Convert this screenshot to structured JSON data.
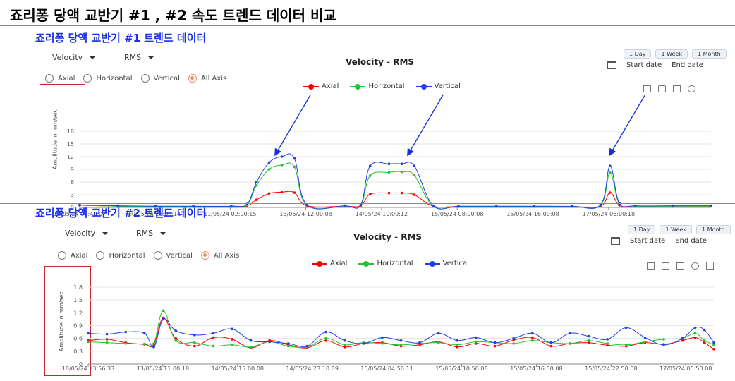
{
  "page": {
    "title": "죠리퐁 당액 교반기 #1 , #2 속도 트렌드 데이터 비교"
  },
  "colors": {
    "axial": "#ff0000",
    "horizontal": "#22c52e",
    "vertical": "#2040ee",
    "accent": "#e8906a",
    "panel_title": "#1d32e6",
    "highlight_box": "#c62828",
    "arrow": "#1530d8"
  },
  "panels": [
    {
      "title": "죠리퐁 당액 교반기 #1 트렌드 데이터",
      "dropdowns": {
        "measure": "Velocity",
        "metric": "RMS"
      },
      "radio": {
        "options": [
          "Axial",
          "Horizontal",
          "Vertical",
          "All Axis"
        ],
        "selected": "All Axis"
      },
      "range_buttons": [
        "1 Day",
        "1 Week",
        "1 Month"
      ],
      "date_labels": {
        "start": "Start date",
        "end": "End date"
      },
      "toolbox_icons": [
        "zoom-icon",
        "zoom-reset-icon",
        "data-view-icon",
        "restore-icon",
        "save-image-icon"
      ]
    },
    {
      "title": "죠리퐁 당액 교반기 #2 트렌드 데이터",
      "dropdowns": {
        "measure": "Velocity",
        "metric": "RMS"
      },
      "radio": {
        "options": [
          "Axial",
          "Horizontal",
          "Vertical",
          "All Axis"
        ],
        "selected": "All Axis"
      },
      "range_buttons": [
        "1 Day",
        "1 Week",
        "1 Month"
      ],
      "date_labels": {
        "start": "Start date",
        "end": "End date"
      },
      "toolbox_icons": [
        "zoom-icon",
        "zoom-reset-icon",
        "data-view-icon",
        "restore-icon",
        "save-image-icon"
      ]
    }
  ],
  "chart_data": [
    {
      "type": "line",
      "title": "Velocity - RMS",
      "ylabel": "Amplitude in mm/sec",
      "xlabel": "",
      "ylim": [
        0,
        18
      ],
      "yticks": [
        0,
        3,
        6,
        9,
        12,
        15,
        18
      ],
      "xlim": [
        0,
        1
      ],
      "xticks": [
        {
          "pos": 0.0,
          "label": "10/05/24 09:40:07"
        },
        {
          "pos": 0.1184,
          "label": "10/05/24 18:00:14"
        },
        {
          "pos": 0.2383,
          "label": "11/05/24 02:00:15"
        },
        {
          "pos": 0.3582,
          "label": "13/05/24 12:00:08"
        },
        {
          "pos": 0.4781,
          "label": "14/05/24 10:00:12"
        },
        {
          "pos": 0.598,
          "label": "15/05/24 08:00:08"
        },
        {
          "pos": 0.7179,
          "label": "15/05/24 16:00:08"
        },
        {
          "pos": 0.8378,
          "label": "17/05/24 06:00:18"
        }
      ],
      "grid": true,
      "legend_position": "top-center",
      "arrows_at": [
        0.31,
        0.52,
        0.84
      ],
      "series": [
        {
          "name": "Axial",
          "color": "#ff0000",
          "x": [
            0.0,
            0.06,
            0.12,
            0.18,
            0.24,
            0.265,
            0.28,
            0.3,
            0.32,
            0.34,
            0.36,
            0.42,
            0.445,
            0.46,
            0.49,
            0.51,
            0.53,
            0.56,
            0.6,
            0.66,
            0.72,
            0.78,
            0.825,
            0.84,
            0.855,
            0.88,
            0.94,
            1.0
          ],
          "values": [
            0.5,
            0.3,
            0.2,
            0.2,
            0.2,
            0.4,
            1.8,
            3.3,
            3.6,
            3.5,
            0.4,
            0.3,
            0.4,
            3.1,
            3.4,
            3.4,
            3.0,
            0.3,
            0.2,
            0.2,
            0.2,
            0.2,
            0.3,
            3.5,
            0.5,
            0.3,
            0.3,
            0.3
          ]
        },
        {
          "name": "Horizontal",
          "color": "#22c52e",
          "x": [
            0.0,
            0.06,
            0.12,
            0.18,
            0.24,
            0.265,
            0.28,
            0.3,
            0.32,
            0.34,
            0.36,
            0.42,
            0.445,
            0.46,
            0.49,
            0.51,
            0.53,
            0.56,
            0.6,
            0.66,
            0.72,
            0.78,
            0.825,
            0.84,
            0.855,
            0.88,
            0.94,
            1.0
          ],
          "values": [
            0.5,
            0.3,
            0.2,
            0.2,
            0.2,
            0.6,
            5.2,
            9.0,
            10.0,
            9.6,
            0.5,
            0.3,
            0.5,
            7.5,
            8.3,
            8.4,
            7.6,
            0.3,
            0.2,
            0.2,
            0.2,
            0.2,
            0.5,
            8.2,
            0.8,
            0.3,
            0.3,
            0.3
          ]
        },
        {
          "name": "Vertical",
          "color": "#2040ee",
          "x": [
            0.0,
            0.06,
            0.12,
            0.18,
            0.24,
            0.265,
            0.28,
            0.3,
            0.32,
            0.34,
            0.36,
            0.42,
            0.445,
            0.46,
            0.49,
            0.51,
            0.53,
            0.56,
            0.6,
            0.66,
            0.72,
            0.78,
            0.825,
            0.84,
            0.855,
            0.88,
            0.94,
            1.0
          ],
          "values": [
            0.6,
            0.4,
            0.3,
            0.3,
            0.3,
            0.8,
            6.0,
            10.6,
            12.0,
            11.6,
            0.6,
            0.4,
            0.6,
            9.8,
            10.3,
            10.3,
            9.8,
            0.4,
            0.3,
            0.3,
            0.3,
            0.3,
            0.6,
            9.8,
            1.0,
            0.4,
            0.4,
            0.4
          ]
        }
      ]
    },
    {
      "type": "line",
      "title": "Velocity - RMS",
      "ylabel": "Amplitude in mm/sec",
      "xlabel": "",
      "ylim": [
        0,
        1.8
      ],
      "yticks": [
        0,
        0.3,
        0.6,
        0.9,
        1.2,
        1.5,
        1.8
      ],
      "xlim": [
        0,
        1
      ],
      "xticks": [
        {
          "pos": 0.0,
          "label": "10/05/24 13:56:33"
        },
        {
          "pos": 0.1194,
          "label": "13/05/24 11:00:18"
        },
        {
          "pos": 0.2388,
          "label": "14/05/24 15:00:08"
        },
        {
          "pos": 0.3582,
          "label": "14/05/24 23:10:09"
        },
        {
          "pos": 0.4776,
          "label": "15/05/24 04:50:11"
        },
        {
          "pos": 0.597,
          "label": "15/05/24 10:50:08"
        },
        {
          "pos": 0.7164,
          "label": "15/05/24 16:50:08"
        },
        {
          "pos": 0.8358,
          "label": "15/05/24 22:50:08"
        },
        {
          "pos": 0.9552,
          "label": "17/05/24 05:50:08"
        }
      ],
      "grid": true,
      "legend_position": "top-center",
      "series": [
        {
          "name": "Axial",
          "color": "#ff0000",
          "x": [
            0.0,
            0.03,
            0.06,
            0.09,
            0.105,
            0.12,
            0.14,
            0.17,
            0.2,
            0.23,
            0.26,
            0.29,
            0.32,
            0.35,
            0.38,
            0.41,
            0.44,
            0.47,
            0.5,
            0.53,
            0.56,
            0.59,
            0.62,
            0.65,
            0.68,
            0.71,
            0.74,
            0.77,
            0.8,
            0.83,
            0.86,
            0.89,
            0.92,
            0.95,
            0.97,
            0.985,
            1.0
          ],
          "values": [
            0.55,
            0.58,
            0.5,
            0.46,
            0.45,
            1.08,
            0.6,
            0.42,
            0.62,
            0.58,
            0.38,
            0.55,
            0.45,
            0.38,
            0.55,
            0.4,
            0.48,
            0.5,
            0.42,
            0.45,
            0.52,
            0.4,
            0.48,
            0.42,
            0.56,
            0.62,
            0.42,
            0.48,
            0.5,
            0.44,
            0.42,
            0.5,
            0.46,
            0.55,
            0.62,
            0.5,
            0.35
          ]
        },
        {
          "name": "Horizontal",
          "color": "#22c52e",
          "x": [
            0.0,
            0.03,
            0.06,
            0.09,
            0.105,
            0.12,
            0.14,
            0.17,
            0.2,
            0.23,
            0.26,
            0.29,
            0.32,
            0.35,
            0.38,
            0.41,
            0.44,
            0.47,
            0.5,
            0.53,
            0.56,
            0.59,
            0.62,
            0.65,
            0.68,
            0.71,
            0.74,
            0.77,
            0.8,
            0.83,
            0.86,
            0.89,
            0.92,
            0.95,
            0.97,
            0.985,
            1.0
          ],
          "values": [
            0.52,
            0.5,
            0.48,
            0.47,
            0.48,
            1.25,
            0.55,
            0.5,
            0.42,
            0.45,
            0.4,
            0.52,
            0.42,
            0.4,
            0.6,
            0.45,
            0.5,
            0.48,
            0.45,
            0.48,
            0.5,
            0.45,
            0.52,
            0.5,
            0.48,
            0.55,
            0.5,
            0.48,
            0.55,
            0.48,
            0.45,
            0.52,
            0.58,
            0.6,
            0.72,
            0.55,
            0.45
          ]
        },
        {
          "name": "Vertical",
          "color": "#2040ee",
          "x": [
            0.0,
            0.03,
            0.06,
            0.09,
            0.105,
            0.12,
            0.14,
            0.17,
            0.2,
            0.23,
            0.26,
            0.29,
            0.32,
            0.35,
            0.38,
            0.41,
            0.44,
            0.47,
            0.5,
            0.53,
            0.56,
            0.59,
            0.62,
            0.65,
            0.68,
            0.71,
            0.74,
            0.77,
            0.8,
            0.83,
            0.86,
            0.89,
            0.92,
            0.95,
            0.97,
            0.985,
            1.0
          ],
          "values": [
            0.72,
            0.7,
            0.75,
            0.72,
            0.4,
            1.05,
            0.78,
            0.68,
            0.72,
            0.82,
            0.55,
            0.52,
            0.48,
            0.42,
            0.75,
            0.55,
            0.48,
            0.62,
            0.55,
            0.5,
            0.72,
            0.55,
            0.62,
            0.5,
            0.6,
            0.72,
            0.5,
            0.72,
            0.65,
            0.58,
            0.85,
            0.62,
            0.45,
            0.6,
            0.85,
            0.8,
            0.5
          ]
        }
      ]
    }
  ]
}
